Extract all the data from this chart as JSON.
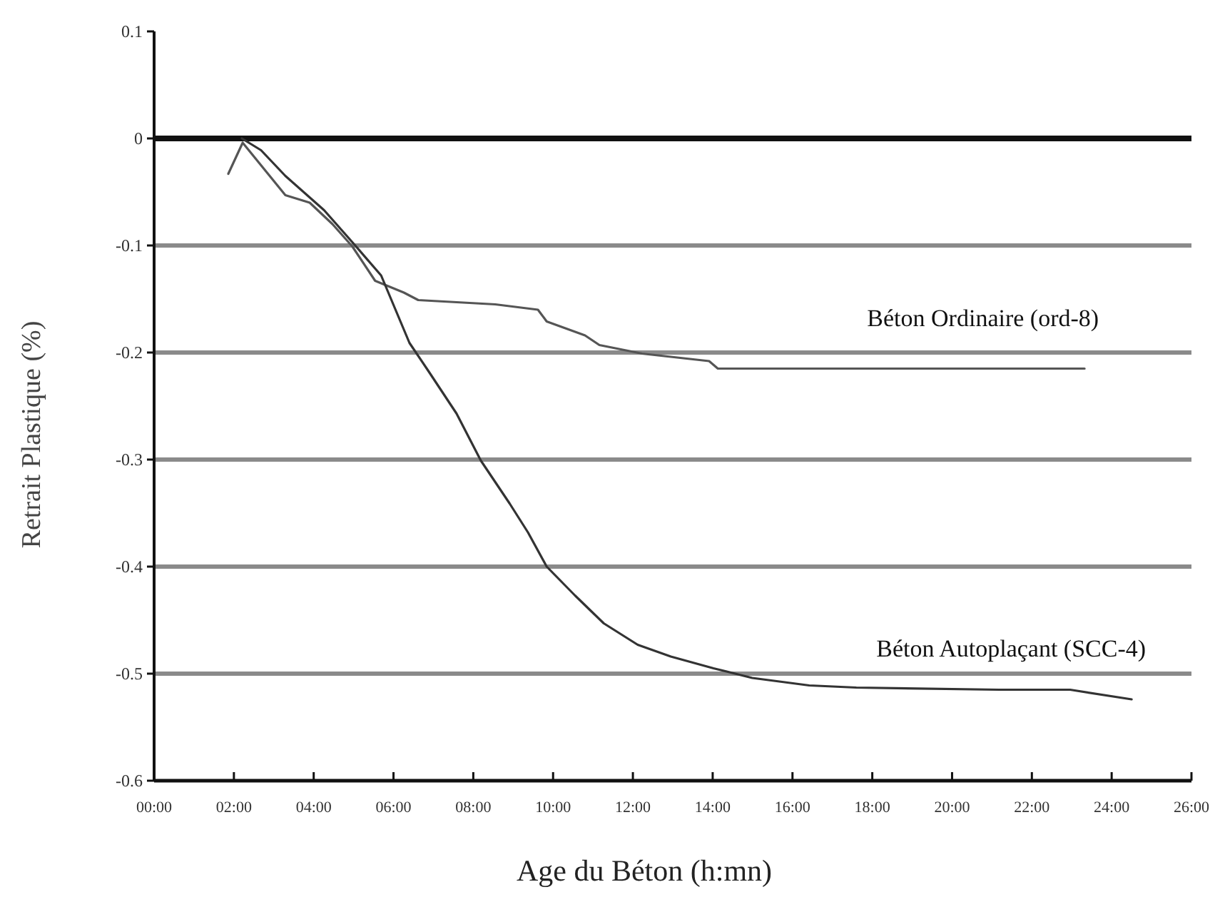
{
  "chart_data": {
    "type": "line",
    "xlabel": "Age du Béton (h:mn)",
    "ylabel": "Retrait Plastique (%)",
    "xlim": [
      0,
      26
    ],
    "xticks": [
      {
        "value": 0,
        "label": "00:00"
      },
      {
        "value": 2,
        "label": "02:00"
      },
      {
        "value": 4,
        "label": "04:00"
      },
      {
        "value": 6,
        "label": "06:00"
      },
      {
        "value": 8,
        "label": "08:00"
      },
      {
        "value": 10,
        "label": "10:00"
      },
      {
        "value": 12,
        "label": "12:00"
      },
      {
        "value": 14,
        "label": "14:00"
      },
      {
        "value": 16,
        "label": "16:00"
      },
      {
        "value": 18,
        "label": "18:00"
      },
      {
        "value": 20,
        "label": "20:00"
      },
      {
        "value": 22,
        "label": "22:00"
      },
      {
        "value": 24,
        "label": "24:00"
      },
      {
        "value": 26,
        "label": "26:00"
      }
    ],
    "ylim": [
      -0.6,
      0.1
    ],
    "yticks": [
      0.1,
      0,
      -0.1,
      -0.2,
      -0.3,
      -0.4,
      -0.5,
      -0.6
    ],
    "grid": "y",
    "marker": "none",
    "line_style": "solid",
    "series": [
      {
        "name": "Béton Ordinaire (ord-8)",
        "color": "#555555",
        "x": [
          1.86,
          2.22,
          3.29,
          3.9,
          4.47,
          4.97,
          5.54,
          6.26,
          6.62,
          8.55,
          9.62,
          9.84,
          10.8,
          11.16,
          12.23,
          13.91,
          14.13,
          16.06,
          18.78,
          23.32
        ],
        "values": [
          -0.033,
          -0.004,
          -0.053,
          -0.06,
          -0.08,
          -0.101,
          -0.133,
          -0.144,
          -0.151,
          -0.155,
          -0.16,
          -0.171,
          -0.184,
          -0.193,
          -0.201,
          -0.208,
          -0.215,
          -0.215,
          -0.215,
          -0.215
        ]
      },
      {
        "name": "Béton Autoplaçant (SCC-4)",
        "color": "#333333",
        "x": [
          2.2,
          2.68,
          3.29,
          4.26,
          4.97,
          5.69,
          6.4,
          6.87,
          7.58,
          8.19,
          8.91,
          9.37,
          9.84,
          10.55,
          11.27,
          12.12,
          12.95,
          14.02,
          14.99,
          16.42,
          17.6,
          21.17,
          22.96,
          24.5
        ],
        "values": [
          0,
          -0.011,
          -0.035,
          -0.067,
          -0.097,
          -0.128,
          -0.191,
          -0.217,
          -0.257,
          -0.301,
          -0.341,
          -0.368,
          -0.4,
          -0.427,
          -0.453,
          -0.473,
          -0.484,
          -0.495,
          -0.504,
          -0.511,
          -0.513,
          -0.515,
          -0.515,
          -0.524
        ]
      }
    ]
  }
}
